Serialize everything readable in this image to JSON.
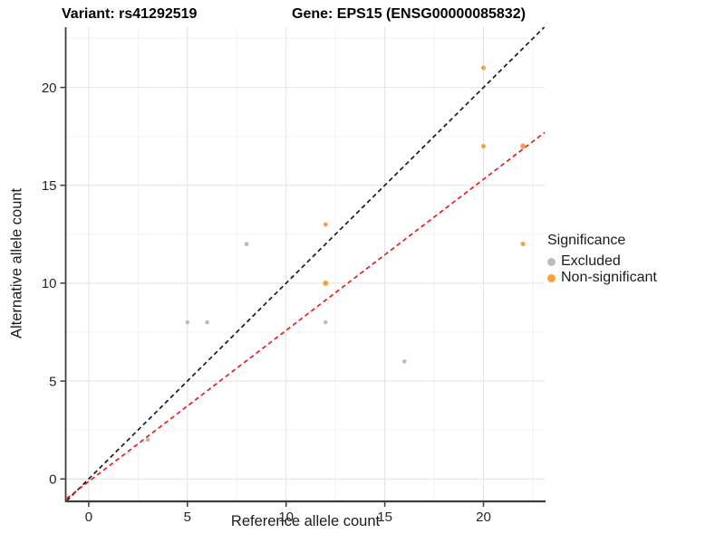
{
  "header": {
    "variant_title": "Variant: rs41292519",
    "gene_title": "Gene: EPS15 (ENSG00000085832)"
  },
  "chart_data": {
    "type": "scatter",
    "title": "Variant: rs41292519 / Gene: EPS15 (ENSG00000085832)",
    "xlabel": "Reference allele count",
    "ylabel": "Alternative allele count",
    "legend_title": "Significance",
    "legend_position": "right",
    "grid": true,
    "xlim": [
      -1.12,
      23.1
    ],
    "ylim": [
      -1.1,
      23.08
    ],
    "xticks": [
      0,
      5,
      10,
      15,
      20
    ],
    "yticks": [
      0,
      5,
      10,
      15,
      20
    ],
    "minor_xticks": [
      2.5,
      7.5,
      12.5,
      17.5,
      22.5
    ],
    "minor_yticks": [
      2.5,
      7.5,
      12.5,
      17.5,
      22.5
    ],
    "series": [
      {
        "name": "Excluded",
        "color": "#BBBBBB",
        "points": [
          [
            3,
            2,
            2.3
          ],
          [
            5,
            8,
            2.3
          ],
          [
            6,
            8,
            2.3
          ],
          [
            8,
            12,
            2.4
          ],
          [
            12,
            8,
            2.3
          ],
          [
            16,
            6,
            2.3
          ]
        ]
      },
      {
        "name": "Non-significant",
        "color": "#F9A03C",
        "points": [
          [
            12,
            13,
            2.4
          ],
          [
            12,
            10,
            3.0
          ],
          [
            20,
            21,
            2.5
          ],
          [
            20,
            17,
            2.5
          ],
          [
            22,
            17,
            3.0
          ],
          [
            22,
            12,
            2.5
          ]
        ]
      }
    ],
    "lines": [
      {
        "name": "identity-line",
        "style": "dashed",
        "color": "#1C1C1C",
        "points": [
          [
            -1.12,
            -1.12
          ],
          [
            23.08,
            23.08
          ]
        ]
      },
      {
        "name": "expected-ratio-line",
        "style": "dashed",
        "color": "#EC1C1C",
        "points": [
          [
            -1.12,
            -1.0
          ],
          [
            23.1,
            17.7
          ]
        ]
      }
    ],
    "colors": {
      "grid_major": "#E4E4E4",
      "grid_minor": "#F2F2F2",
      "axis": "#3D3D3D",
      "tick_text": "#262626"
    }
  }
}
